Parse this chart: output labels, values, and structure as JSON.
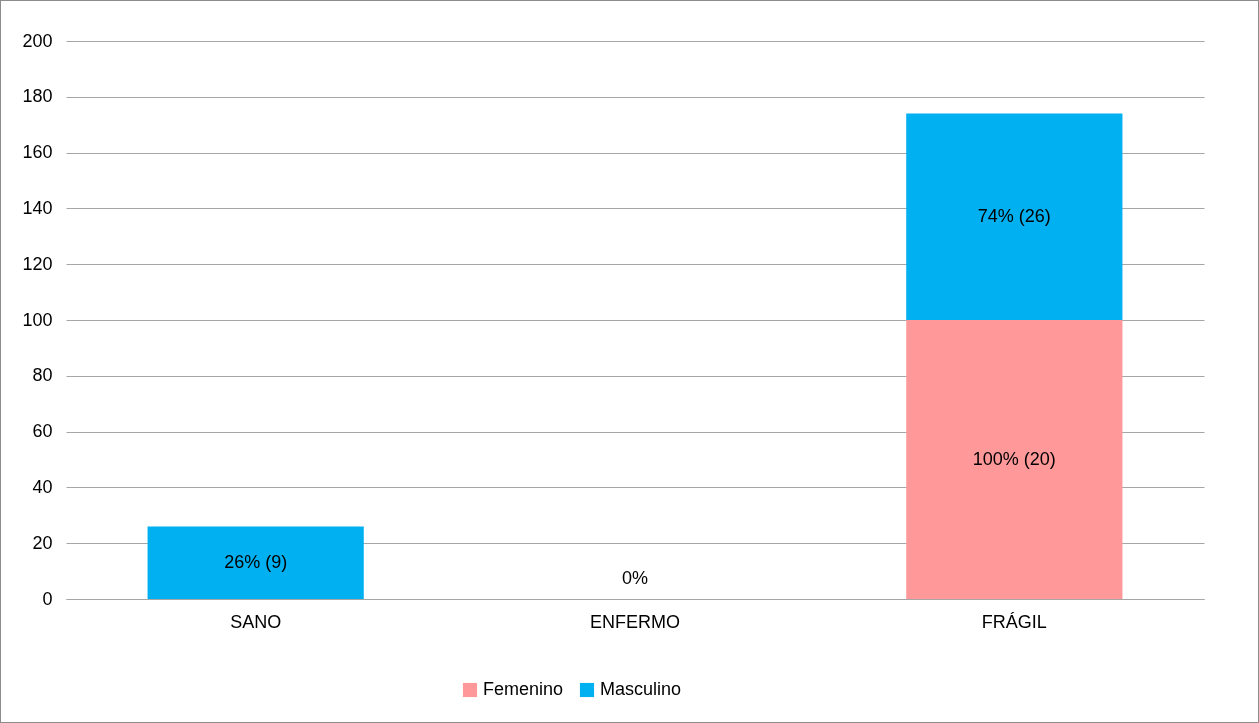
{
  "chart_data": {
    "type": "bar",
    "stacked": true,
    "categories": [
      "SANO",
      "ENFERMO",
      "FRÁGIL"
    ],
    "series": [
      {
        "name": "Femenino",
        "color": "#ff9999",
        "values": [
          0,
          0,
          100
        ],
        "value_labels": [
          null,
          null,
          "100% (20)"
        ]
      },
      {
        "name": "Masculino",
        "color": "#00b0f0",
        "values": [
          26,
          0,
          74
        ],
        "value_labels": [
          "26% (9)",
          "0%",
          "74% (26)"
        ]
      }
    ],
    "ylim": [
      0,
      200
    ],
    "yticks": [
      0,
      20,
      40,
      60,
      80,
      100,
      120,
      140,
      160,
      180,
      200
    ],
    "grid": "y",
    "legend": "bottom"
  }
}
